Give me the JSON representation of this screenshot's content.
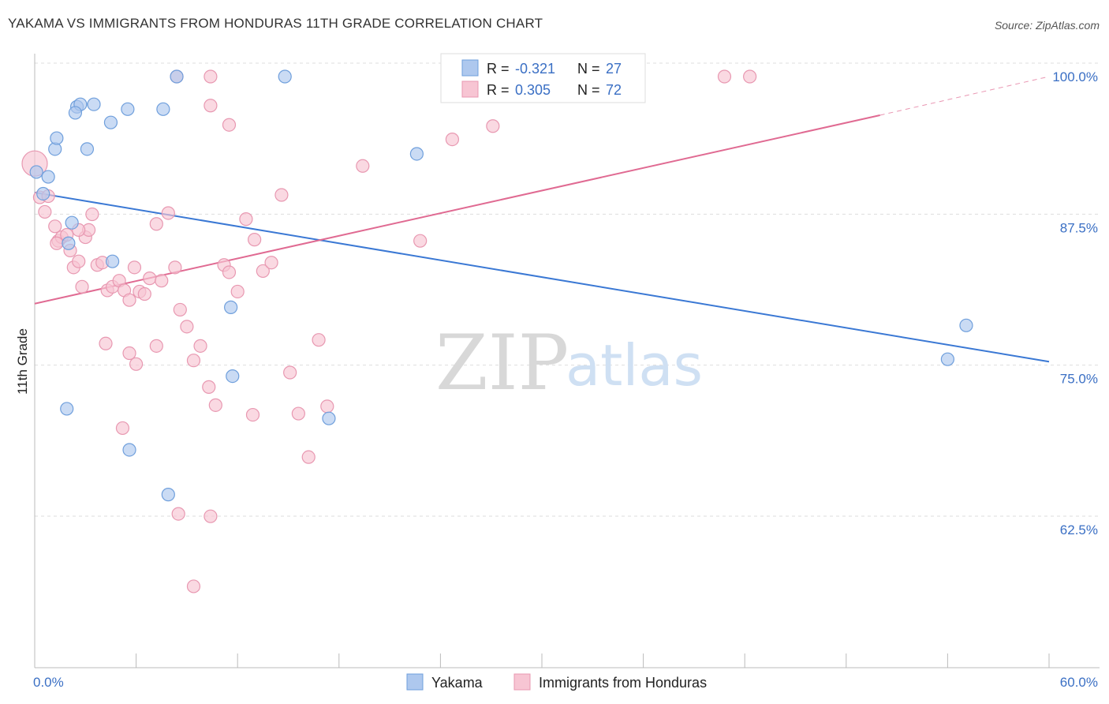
{
  "title": "YAKAMA VS IMMIGRANTS FROM HONDURAS 11TH GRADE CORRELATION CHART",
  "source": "Source: ZipAtlas.com",
  "watermark": {
    "zip": "ZIP",
    "atlas": "atlas"
  },
  "colors": {
    "yakama_fill": "#aec8ee",
    "yakama_stroke": "#6f9fdc",
    "yakama_line": "#3a78d4",
    "honduras_fill": "#f7c5d3",
    "honduras_stroke": "#e898b1",
    "honduras_line": "#e06a92",
    "tick_label": "#3a6fc4",
    "grid": "#dddddd"
  },
  "legend_top": {
    "rows": [
      {
        "r_label": "R =",
        "r_value": "-0.321",
        "n_label": "N =",
        "n_value": "27"
      },
      {
        "r_label": "R =",
        "r_value": "0.305",
        "n_label": "N =",
        "n_value": "72"
      }
    ]
  },
  "chart_data": {
    "type": "scatter",
    "title": "YAKAMA VS IMMIGRANTS FROM HONDURAS 11TH GRADE CORRELATION CHART",
    "xlabel": "",
    "ylabel": "11th Grade",
    "xlim": [
      0,
      60
    ],
    "ylim": [
      52,
      101
    ],
    "x_tick_labels": [
      "0.0%",
      "60.0%"
    ],
    "x_tick_label_values": [
      0,
      60
    ],
    "x_minor_ticks": [
      0,
      6,
      12,
      18,
      24,
      30,
      36,
      42,
      48,
      54,
      60
    ],
    "y_ticks": [
      100,
      87.5,
      75,
      62.5
    ],
    "y_tick_labels": [
      "100.0%",
      "87.5%",
      "75.0%",
      "62.5%"
    ],
    "grid": true,
    "series": [
      {
        "name": "Yakama",
        "r": -0.321,
        "n": 27,
        "trend": {
          "x0": 0,
          "y0": 90.4,
          "x1": 60,
          "y1": 76.4
        },
        "points": [
          [
            0.1,
            92.1
          ],
          [
            0.8,
            91.7
          ],
          [
            0.5,
            90.3
          ],
          [
            1.2,
            94.0
          ],
          [
            1.3,
            94.9
          ],
          [
            2.5,
            97.5
          ],
          [
            2.7,
            97.7
          ],
          [
            2.4,
            97.0
          ],
          [
            3.5,
            97.7
          ],
          [
            4.5,
            96.2
          ],
          [
            3.1,
            94.0
          ],
          [
            2.2,
            87.9
          ],
          [
            4.6,
            84.7
          ],
          [
            2.0,
            86.2
          ],
          [
            5.5,
            97.3
          ],
          [
            7.6,
            97.3
          ],
          [
            8.4,
            100.0
          ],
          [
            14.8,
            100.0
          ],
          [
            22.6,
            93.6
          ],
          [
            11.6,
            80.9
          ],
          [
            11.7,
            75.2
          ],
          [
            17.4,
            71.7
          ],
          [
            1.9,
            72.5
          ],
          [
            5.6,
            69.1
          ],
          [
            7.9,
            65.4
          ],
          [
            55.1,
            79.4
          ],
          [
            54.0,
            76.6
          ]
        ]
      },
      {
        "name": "Immigrants from Honduras",
        "r": 0.305,
        "n": 72,
        "trend": {
          "x0": 0,
          "y0": 81.2,
          "x1": 50,
          "y1": 96.8,
          "dash_to_x": 60,
          "dash_to_y": 100.0
        },
        "points": [
          [
            0.0,
            92.8
          ],
          [
            0.3,
            90.0
          ],
          [
            0.6,
            88.8
          ],
          [
            0.8,
            90.1
          ],
          [
            1.2,
            87.6
          ],
          [
            1.4,
            86.4
          ],
          [
            1.6,
            86.7
          ],
          [
            1.9,
            86.9
          ],
          [
            2.1,
            85.6
          ],
          [
            2.3,
            84.2
          ],
          [
            2.6,
            84.7
          ],
          [
            2.8,
            82.6
          ],
          [
            3.0,
            86.7
          ],
          [
            3.2,
            87.3
          ],
          [
            3.4,
            88.6
          ],
          [
            3.7,
            84.4
          ],
          [
            4.0,
            84.6
          ],
          [
            4.3,
            82.3
          ],
          [
            4.6,
            82.6
          ],
          [
            5.0,
            83.1
          ],
          [
            5.3,
            82.3
          ],
          [
            5.6,
            81.5
          ],
          [
            5.9,
            84.2
          ],
          [
            6.2,
            82.2
          ],
          [
            6.5,
            82.0
          ],
          [
            6.8,
            83.3
          ],
          [
            7.2,
            87.8
          ],
          [
            7.5,
            83.1
          ],
          [
            7.9,
            88.7
          ],
          [
            8.3,
            84.2
          ],
          [
            8.6,
            80.7
          ],
          [
            9.0,
            79.3
          ],
          [
            9.4,
            76.5
          ],
          [
            9.8,
            77.7
          ],
          [
            10.3,
            74.3
          ],
          [
            10.7,
            72.8
          ],
          [
            11.2,
            84.4
          ],
          [
            11.5,
            83.8
          ],
          [
            12.0,
            82.2
          ],
          [
            12.5,
            88.2
          ],
          [
            13.0,
            86.5
          ],
          [
            13.5,
            83.9
          ],
          [
            14.0,
            84.6
          ],
          [
            14.6,
            90.2
          ],
          [
            15.1,
            75.5
          ],
          [
            15.6,
            72.1
          ],
          [
            16.2,
            68.5
          ],
          [
            16.8,
            78.2
          ],
          [
            17.3,
            72.7
          ],
          [
            8.4,
            100.0
          ],
          [
            10.4,
            100.0
          ],
          [
            25.0,
            100.0
          ],
          [
            28.0,
            100.0
          ],
          [
            40.8,
            100.0
          ],
          [
            42.3,
            100.0
          ],
          [
            11.5,
            96.0
          ],
          [
            10.4,
            97.6
          ],
          [
            19.4,
            92.6
          ],
          [
            24.7,
            94.8
          ],
          [
            27.1,
            95.9
          ],
          [
            22.8,
            86.4
          ],
          [
            4.2,
            77.9
          ],
          [
            5.6,
            77.1
          ],
          [
            6.0,
            76.2
          ],
          [
            7.2,
            77.7
          ],
          [
            5.2,
            70.9
          ],
          [
            12.9,
            72.0
          ],
          [
            8.5,
            63.8
          ],
          [
            10.4,
            63.6
          ],
          [
            9.4,
            57.8
          ],
          [
            1.3,
            86.2
          ],
          [
            2.6,
            87.3
          ]
        ]
      }
    ]
  }
}
